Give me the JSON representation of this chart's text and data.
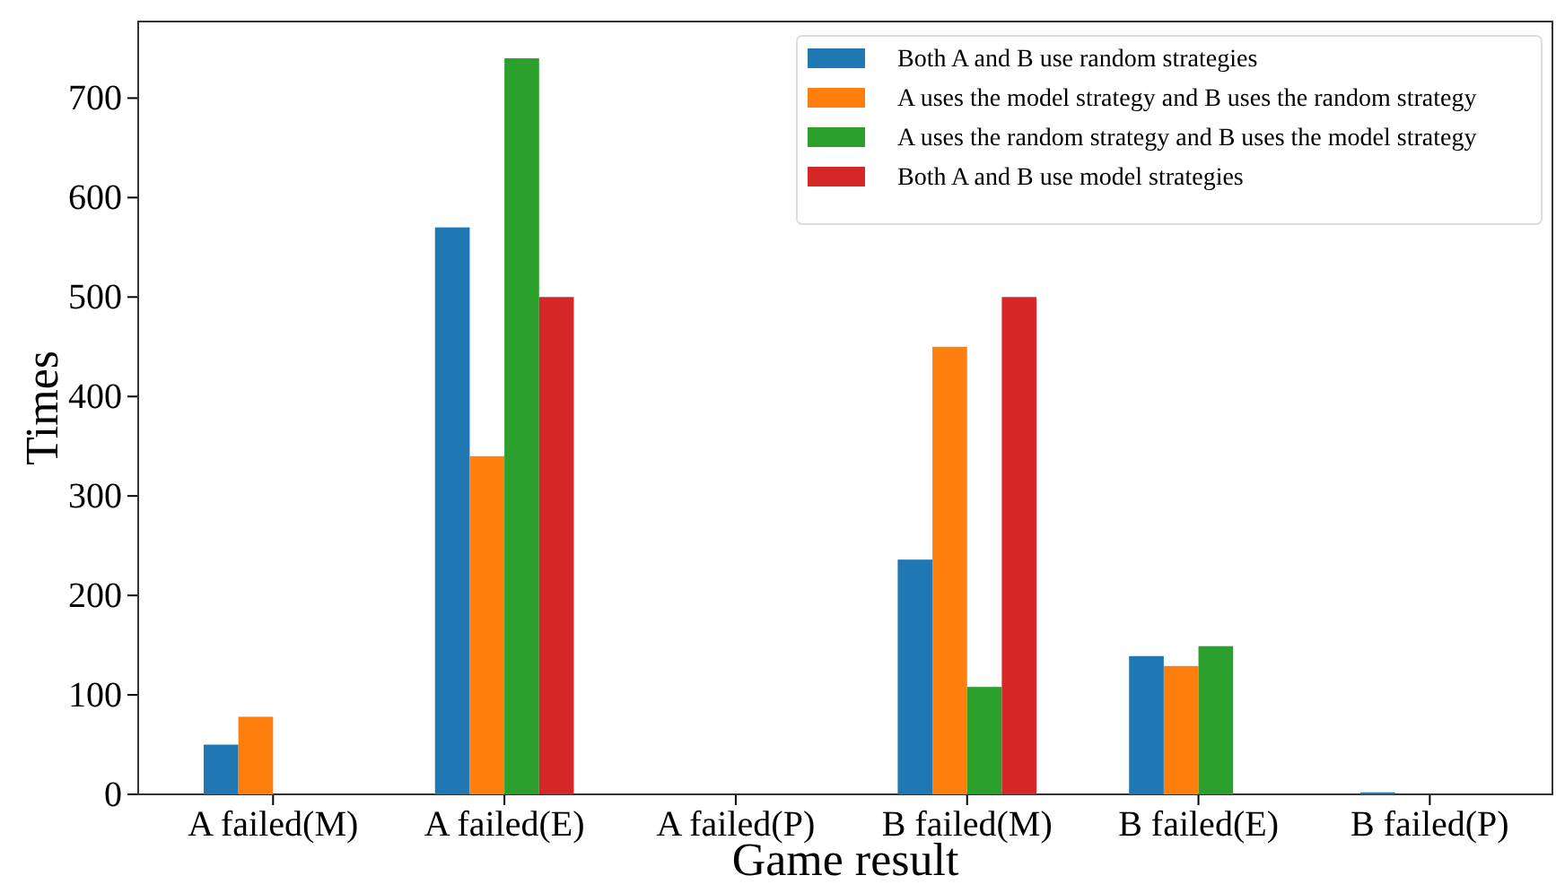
{
  "chart_data": {
    "type": "bar",
    "xlabel": "Game result",
    "ylabel": "Times",
    "categories": [
      "A failed(M)",
      "A failed(E)",
      "A failed(P)",
      "B failed(M)",
      "B failed(E)",
      "B failed(P)"
    ],
    "series": [
      {
        "name": "Both A and B use random strategies",
        "color": "#1f77b4",
        "values": [
          50,
          570,
          0,
          236,
          139,
          2
        ]
      },
      {
        "name": "A uses the model strategy and B uses the random strategy",
        "color": "#ff7f0e",
        "values": [
          78,
          340,
          0,
          450,
          129,
          0
        ]
      },
      {
        "name": "A uses the random strategy and B uses the model strategy",
        "color": "#2ca02c",
        "values": [
          0,
          740,
          0,
          108,
          149,
          0
        ]
      },
      {
        "name": "Both A and B use model strategies",
        "color": "#d62728",
        "values": [
          0,
          500,
          0,
          500,
          0,
          0
        ]
      }
    ],
    "ylim": [
      0,
      777
    ],
    "yticks": [
      0,
      100,
      200,
      300,
      400,
      500,
      600,
      700
    ],
    "grid": false,
    "legend": "top right"
  }
}
